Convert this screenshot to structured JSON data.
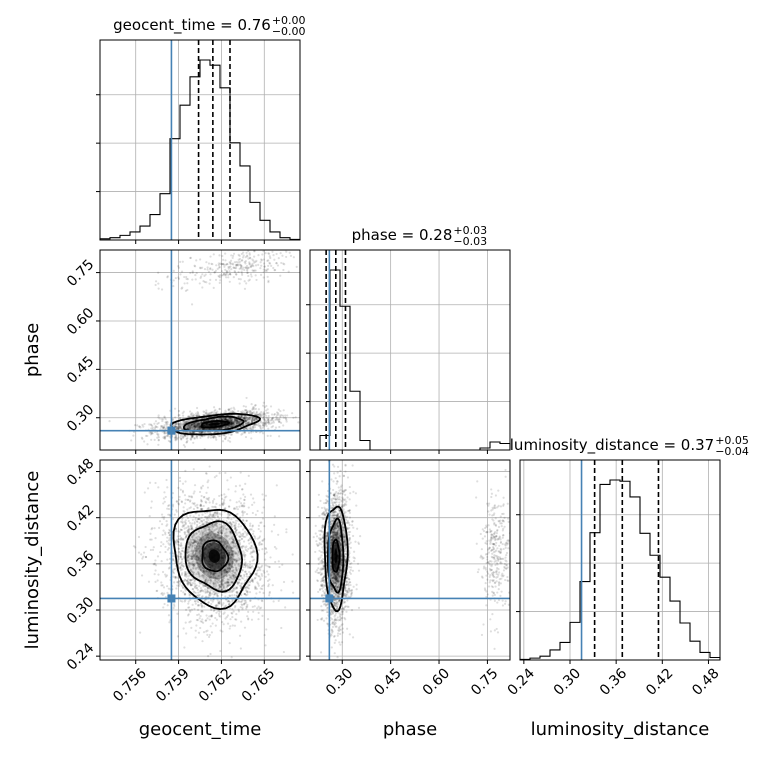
{
  "chart_data": {
    "type": "corner",
    "parameters": [
      "geocent_time",
      "phase",
      "luminosity_distance"
    ],
    "truth_color": "#4682b4",
    "truths": {
      "geocent_time": 0.7585,
      "phase": 0.26,
      "luminosity_distance": 0.315
    },
    "ranges": {
      "geocent_time": [
        0.7535,
        0.7675
      ],
      "phase": [
        0.2,
        0.82
      ],
      "luminosity_distance": [
        0.235,
        0.495
      ]
    },
    "ticks": {
      "geocent_time": [
        0.756,
        0.759,
        0.762,
        0.765
      ],
      "phase": [
        0.3,
        0.45,
        0.6,
        0.75
      ],
      "luminosity_distance": [
        0.24,
        0.3,
        0.36,
        0.42,
        0.48
      ]
    },
    "tick_labels": {
      "geocent_time": [
        "0.756",
        "0.759",
        "0.762",
        "0.765"
      ],
      "phase": [
        "0.30",
        "0.45",
        "0.60",
        "0.75"
      ],
      "luminosity_distance": [
        "0.24",
        "0.30",
        "0.36",
        "0.42",
        "0.48"
      ]
    },
    "axis_labels": {
      "geocent_time": "geocent_time",
      "phase": "phase",
      "luminosity_distance": "luminosity_distance"
    },
    "titles": {
      "geocent_time": {
        "main": "geocent_time = 0.76",
        "plus": "+0.00",
        "minus": "−0.00"
      },
      "phase": {
        "main": "phase = 0.28",
        "plus": "+0.03",
        "minus": "−0.03"
      },
      "luminosity_distance": {
        "main": "luminosity_distance = 0.37",
        "plus": "+0.05",
        "minus": "−0.04"
      }
    },
    "quantiles": {
      "geocent_time": [
        0.7604,
        0.7614,
        0.7626
      ],
      "phase": [
        0.25,
        0.28,
        0.31
      ],
      "luminosity_distance": [
        0.332,
        0.368,
        0.415
      ]
    },
    "histograms": {
      "geocent_time": {
        "edges": [
          0.7535,
          0.7542,
          0.7549,
          0.7556,
          0.7563,
          0.757,
          0.7577,
          0.7584,
          0.7591,
          0.7598,
          0.7605,
          0.7612,
          0.7619,
          0.7626,
          0.7633,
          0.764,
          0.7647,
          0.7654,
          0.7661,
          0.7668,
          0.7675
        ],
        "counts": [
          2,
          4,
          8,
          14,
          24,
          44,
          80,
          175,
          233,
          282,
          311,
          302,
          263,
          168,
          128,
          65,
          34,
          14,
          4,
          1
        ]
      },
      "phase": {
        "edges": [
          0.2,
          0.231,
          0.262,
          0.293,
          0.324,
          0.355,
          0.386,
          0.417,
          0.448,
          0.479,
          0.51,
          0.541,
          0.572,
          0.603,
          0.634,
          0.665,
          0.696,
          0.727,
          0.758,
          0.789,
          0.82
        ],
        "counts": [
          0,
          58,
          720,
          575,
          235,
          38,
          0,
          0,
          0,
          0,
          0,
          0,
          0,
          0,
          0,
          0,
          0,
          8,
          32,
          26
        ]
      },
      "luminosity_distance": {
        "edges": [
          0.235,
          0.248,
          0.261,
          0.274,
          0.287,
          0.3,
          0.313,
          0.326,
          0.339,
          0.352,
          0.365,
          0.378,
          0.391,
          0.404,
          0.417,
          0.43,
          0.443,
          0.456,
          0.469,
          0.482,
          0.495
        ],
        "counts": [
          1,
          3,
          6,
          16,
          28,
          60,
          125,
          203,
          280,
          287,
          285,
          260,
          202,
          167,
          132,
          94,
          59,
          30,
          12,
          4
        ]
      }
    },
    "density_components": {
      "phase_vs_geocent_time": [
        {
          "weight": 0.88,
          "mean": [
            0.7615,
            0.28
          ],
          "sd": [
            0.0019,
            0.02
          ],
          "corr": 0.4
        },
        {
          "weight": 0.12,
          "mean": [
            0.763,
            0.765
          ],
          "sd": [
            0.0022,
            0.03
          ],
          "corr": 0.55
        }
      ],
      "luminosity_distance_vs_geocent_time": [
        {
          "weight": 1.0,
          "mean": [
            0.7615,
            0.37
          ],
          "sd": [
            0.0018,
            0.04
          ],
          "corr": -0.1
        }
      ],
      "luminosity_distance_vs_phase": [
        {
          "weight": 0.88,
          "mean": [
            0.28,
            0.37
          ],
          "sd": [
            0.022,
            0.042
          ],
          "corr": 0.0
        },
        {
          "weight": 0.12,
          "mean": [
            0.775,
            0.37
          ],
          "sd": [
            0.022,
            0.04
          ],
          "corr": 0.0
        }
      ]
    }
  }
}
